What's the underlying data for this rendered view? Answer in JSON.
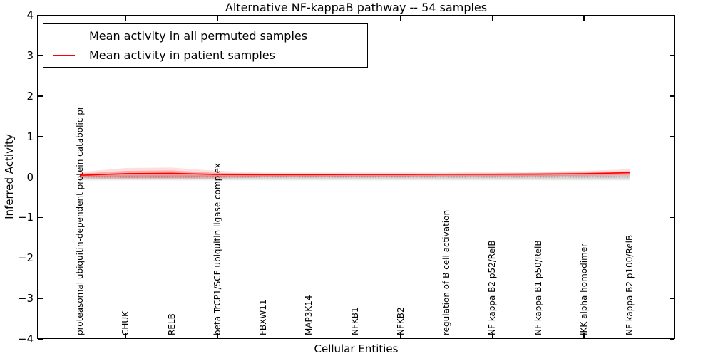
{
  "figure": {
    "title": "Alternative NF-kappaB pathway -- 54 samples",
    "xlabel": "Cellular Entities",
    "ylabel": "Inferred Activity"
  },
  "legend": {
    "position": "upper left",
    "items": [
      {
        "label": "Mean activity in all permuted samples",
        "color": "#000000"
      },
      {
        "label": "Mean activity in patient samples",
        "color": "#ff0000"
      }
    ]
  },
  "chart_data": {
    "type": "line",
    "title": "Alternative NF-kappaB pathway -- 54 samples",
    "xlabel": "Cellular Entities",
    "ylabel": "Inferred Activity",
    "ylim": [
      -4,
      4
    ],
    "ytick_labels": [
      "4",
      "3",
      "2",
      "1",
      "0",
      "−1",
      "−2",
      "−3",
      "−4"
    ],
    "ytick_values": [
      4,
      3,
      2,
      1,
      0,
      -1,
      -2,
      -3,
      -4
    ],
    "grid": false,
    "legend_position": "upper left",
    "categories": [
      "proteasomal ubiquitin-dependent protein catabolic pr",
      "CHUK",
      "RELB",
      "beta TrCP1/SCF ubiquitin ligase complex",
      "FBXW11",
      "MAP3K14",
      "NFKB1",
      "NFKB2",
      "regulation of B cell activation",
      "NF kappa B2 p52/RelB",
      "NF kappa B1 p50/RelB",
      "IKK alpha homodimer",
      "NF kappa B2 p100/RelB"
    ],
    "series": [
      {
        "name": "Mean activity in all permuted samples",
        "color": "#000000",
        "style": "dotted",
        "values": [
          0.0,
          0.0,
          0.0,
          0.0,
          0.0,
          0.0,
          0.0,
          0.0,
          0.0,
          0.0,
          0.0,
          0.0,
          0.0
        ]
      },
      {
        "name": "Mean activity in patient samples",
        "color": "#ff0000",
        "style": "solid",
        "values": [
          0.04,
          0.08,
          0.09,
          0.06,
          0.055,
          0.055,
          0.06,
          0.06,
          0.065,
          0.065,
          0.07,
          0.08,
          0.105
        ]
      }
    ],
    "bands": [
      {
        "name": "permuted-samples-range-outer",
        "color": "rgba(0,0,0,0.08)",
        "upper": [
          0.085,
          0.085,
          0.085,
          0.085,
          0.085,
          0.085,
          0.085,
          0.085,
          0.085,
          0.085,
          0.085,
          0.085,
          0.085
        ],
        "lower": [
          -0.085,
          -0.085,
          -0.085,
          -0.085,
          -0.085,
          -0.085,
          -0.085,
          -0.085,
          -0.085,
          -0.085,
          -0.085,
          -0.085,
          -0.085
        ]
      },
      {
        "name": "permuted-samples-range-inner",
        "color": "rgba(0,0,0,0.08)",
        "upper": [
          0.05,
          0.05,
          0.05,
          0.05,
          0.05,
          0.05,
          0.05,
          0.05,
          0.05,
          0.05,
          0.05,
          0.05,
          0.05
        ],
        "lower": [
          -0.05,
          -0.05,
          -0.05,
          -0.05,
          -0.05,
          -0.05,
          -0.05,
          -0.05,
          -0.05,
          -0.05,
          -0.05,
          -0.05,
          -0.05
        ]
      },
      {
        "name": "patient-samples-range-outer",
        "color": "rgba(255,0,0,0.13)",
        "upper": [
          0.12,
          0.22,
          0.23,
          0.15,
          0.11,
          0.11,
          0.11,
          0.11,
          0.11,
          0.12,
          0.13,
          0.15,
          0.19
        ],
        "lower": [
          -0.03,
          -0.06,
          -0.06,
          -0.04,
          -0.01,
          -0.01,
          -0.01,
          -0.01,
          -0.01,
          -0.01,
          -0.01,
          0.0,
          0.02
        ]
      },
      {
        "name": "patient-samples-range-inner",
        "color": "rgba(255,0,0,0.22)",
        "upper": [
          0.08,
          0.15,
          0.16,
          0.1,
          0.08,
          0.08,
          0.08,
          0.08,
          0.08,
          0.09,
          0.1,
          0.11,
          0.14
        ],
        "lower": [
          0.0,
          -0.02,
          -0.02,
          -0.01,
          0.01,
          0.01,
          0.01,
          0.01,
          0.02,
          0.02,
          0.02,
          0.03,
          0.05
        ]
      }
    ]
  }
}
